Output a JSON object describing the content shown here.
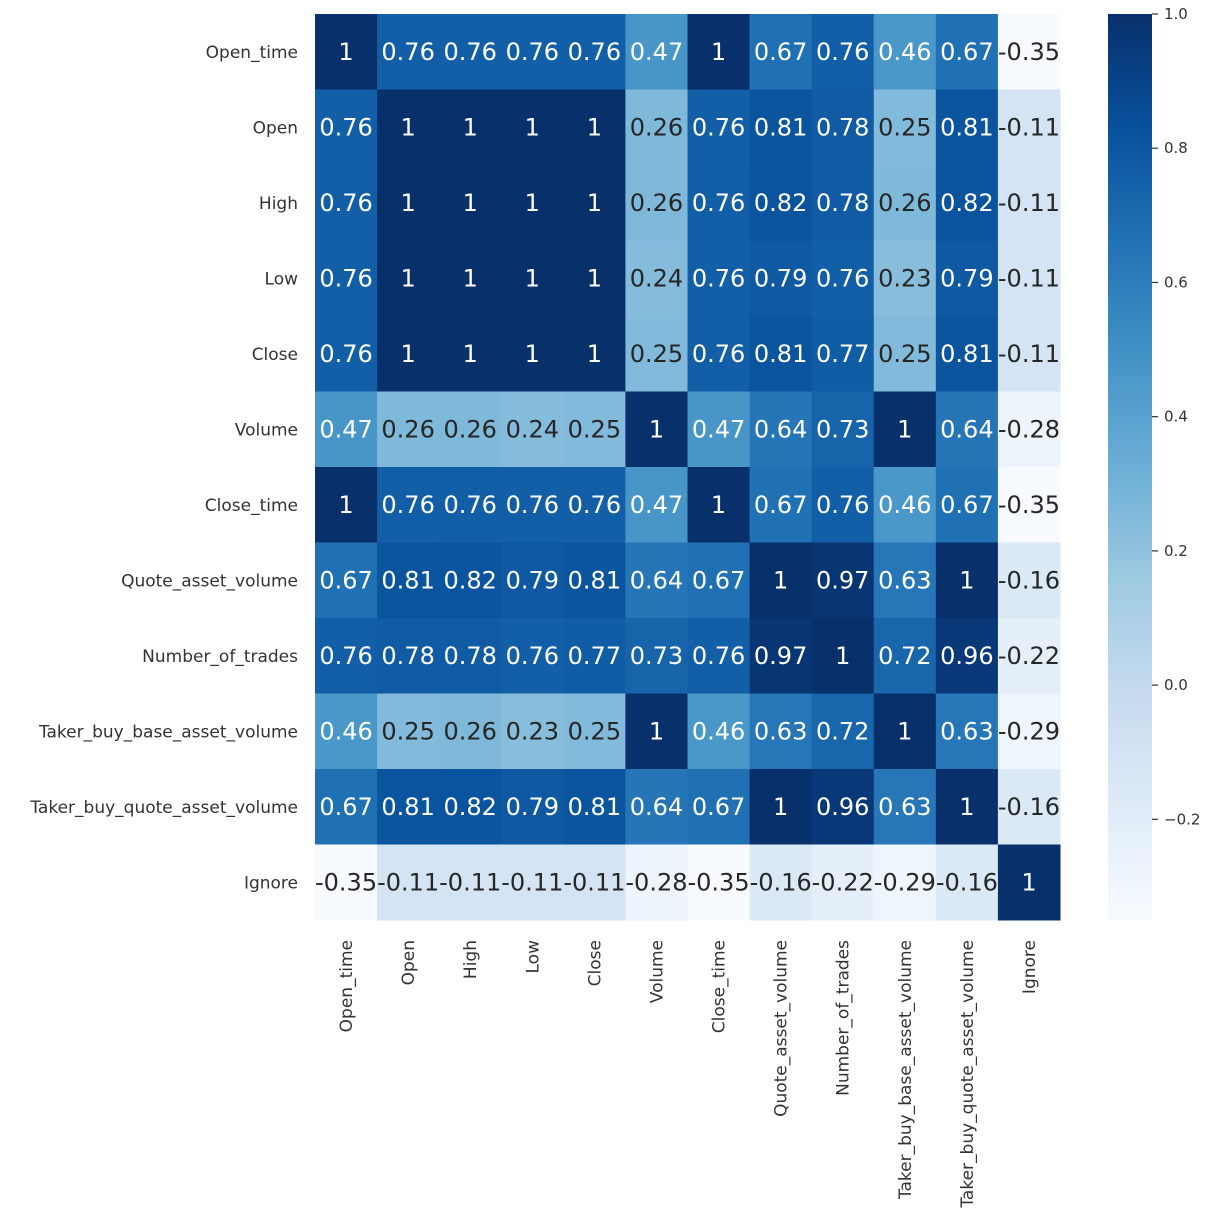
{
  "chart_data": {
    "type": "heatmap",
    "title": "",
    "xlabel": "",
    "ylabel": "",
    "colormap": "Blues",
    "value_range": [
      -0.35,
      1.0
    ],
    "annotated": true,
    "labels": [
      "Open_time",
      "Open",
      "High",
      "Low",
      "Close",
      "Volume",
      "Close_time",
      "Quote_asset_volume",
      "Number_of_trades",
      "Taker_buy_base_asset_volume",
      "Taker_buy_quote_asset_volume",
      "Ignore"
    ],
    "matrix": [
      [
        1,
        0.76,
        0.76,
        0.76,
        0.76,
        0.47,
        1,
        0.67,
        0.76,
        0.46,
        0.67,
        -0.35
      ],
      [
        0.76,
        1,
        1,
        1,
        1,
        0.26,
        0.76,
        0.81,
        0.78,
        0.25,
        0.81,
        -0.11
      ],
      [
        0.76,
        1,
        1,
        1,
        1,
        0.26,
        0.76,
        0.82,
        0.78,
        0.26,
        0.82,
        -0.11
      ],
      [
        0.76,
        1,
        1,
        1,
        1,
        0.24,
        0.76,
        0.79,
        0.76,
        0.23,
        0.79,
        -0.11
      ],
      [
        0.76,
        1,
        1,
        1,
        1,
        0.25,
        0.76,
        0.81,
        0.77,
        0.25,
        0.81,
        -0.11
      ],
      [
        0.47,
        0.26,
        0.26,
        0.24,
        0.25,
        1,
        0.47,
        0.64,
        0.73,
        1,
        0.64,
        -0.28
      ],
      [
        1,
        0.76,
        0.76,
        0.76,
        0.76,
        0.47,
        1,
        0.67,
        0.76,
        0.46,
        0.67,
        -0.35
      ],
      [
        0.67,
        0.81,
        0.82,
        0.79,
        0.81,
        0.64,
        0.67,
        1,
        0.97,
        0.63,
        1,
        -0.16
      ],
      [
        0.76,
        0.78,
        0.78,
        0.76,
        0.77,
        0.73,
        0.76,
        0.97,
        1,
        0.72,
        0.96,
        -0.22
      ],
      [
        0.46,
        0.25,
        0.26,
        0.23,
        0.25,
        1,
        0.46,
        0.63,
        0.72,
        1,
        0.63,
        -0.29
      ],
      [
        0.67,
        0.81,
        0.82,
        0.79,
        0.81,
        0.64,
        0.67,
        1,
        0.96,
        0.63,
        1,
        -0.16
      ],
      [
        -0.35,
        -0.11,
        -0.11,
        -0.11,
        -0.11,
        -0.28,
        -0.35,
        -0.16,
        -0.22,
        -0.29,
        -0.16,
        1
      ]
    ],
    "colorbar": {
      "ticks": [
        1.0,
        0.8,
        0.6,
        0.4,
        0.2,
        0.0,
        -0.2
      ],
      "tick_labels": [
        "1.0",
        "0.8",
        "0.6",
        "0.4",
        "0.2",
        "0.0",
        "−0.2"
      ]
    }
  }
}
